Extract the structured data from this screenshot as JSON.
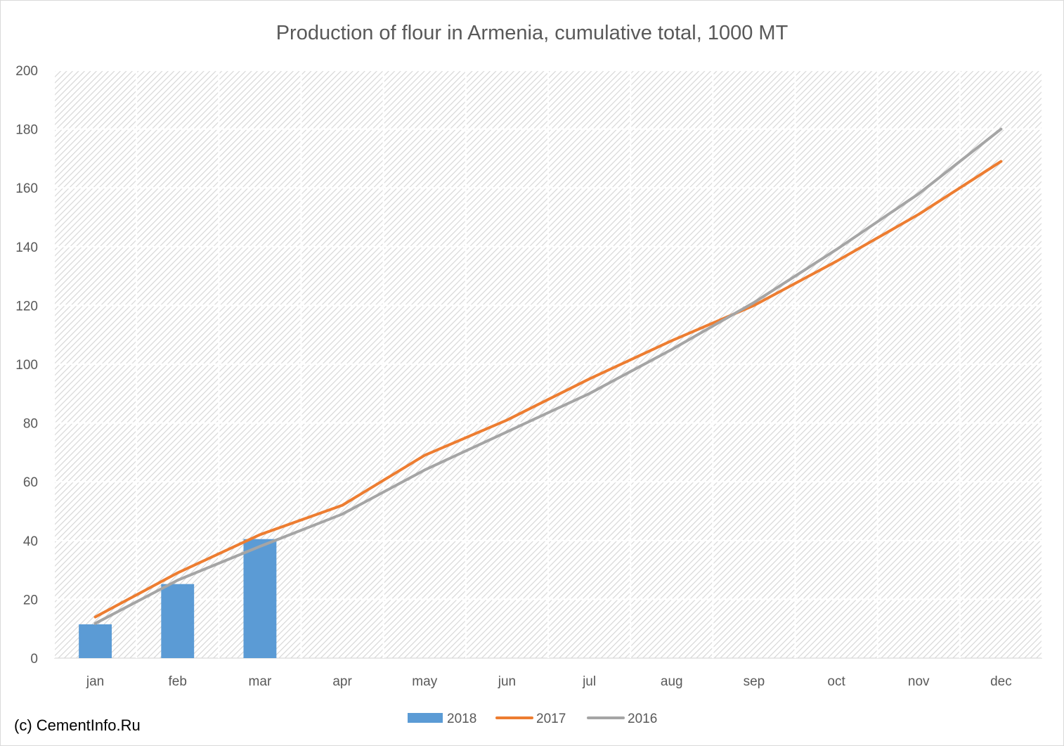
{
  "chart_data": {
    "type": "bar+line",
    "title": "Production of flour in Armenia, cumulative total, 1000 MT",
    "categories": [
      "jan",
      "feb",
      "mar",
      "apr",
      "may",
      "jun",
      "jul",
      "aug",
      "sep",
      "oct",
      "nov",
      "dec"
    ],
    "ylim": [
      0,
      200
    ],
    "yticks": [
      0,
      20,
      40,
      60,
      80,
      100,
      120,
      140,
      160,
      180,
      200
    ],
    "grid": true,
    "legend_position": "bottom",
    "series": [
      {
        "name": "2018",
        "type": "bar",
        "color": "#5b9bd5",
        "values": [
          11.5,
          25.2,
          40.5,
          null,
          null,
          null,
          null,
          null,
          null,
          null,
          null,
          null
        ]
      },
      {
        "name": "2017",
        "type": "line",
        "color": "#ed7d31",
        "values": [
          14,
          29,
          42,
          52,
          69,
          81,
          95,
          108,
          120,
          135,
          151,
          169
        ]
      },
      {
        "name": "2016",
        "type": "line",
        "color": "#a5a5a5",
        "values": [
          11.8,
          26.5,
          38,
          49,
          64,
          77,
          90,
          105,
          121,
          139,
          158,
          180
        ]
      }
    ]
  },
  "footer": {
    "copyright": "(c) CementInfo.Ru"
  }
}
